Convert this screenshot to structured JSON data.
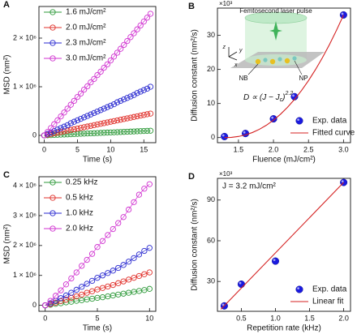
{
  "chart_data": [
    {
      "panel": "A",
      "type": "line",
      "xlabel": "Time (s)",
      "ylabel": "MSD (nm²)",
      "legend": "upper left",
      "x": [
        0,
        0.5,
        1,
        1.5,
        2,
        2.5,
        3,
        3.5,
        4,
        4.5,
        5,
        5.5,
        6,
        6.5,
        7,
        7.5,
        8,
        8.5,
        9,
        9.5,
        10,
        10.5,
        11,
        11.5,
        12,
        12.5,
        13,
        13.5,
        14,
        14.5,
        15,
        15.5,
        16
      ],
      "xlim": [
        -0.8,
        16.8
      ],
      "xticks": [
        0,
        5,
        10,
        15
      ],
      "ylim": [
        -150000,
        2650000
      ],
      "yticks": [
        0,
        {
          "value": 1000000,
          "label": "1 × 10⁶"
        },
        {
          "value": 2000000,
          "label": "2 × 10⁶"
        }
      ],
      "series": [
        {
          "name": "1.6 mJ/cm²",
          "color": "#2e9a3a",
          "style": "line-markers",
          "values": [
            0,
            3000,
            6000,
            9000,
            12000,
            15000,
            18000,
            21000,
            24000,
            27000,
            30000,
            33000,
            36000,
            39000,
            42000,
            45000,
            48000,
            51000,
            54000,
            57000,
            60000,
            63000,
            66000,
            69000,
            72000,
            75000,
            78000,
            81000,
            84000,
            87000,
            90000,
            93000,
            96000
          ]
        },
        {
          "name": "2.0 mJ/cm²",
          "color": "#e0302a",
          "style": "line-markers",
          "values": [
            0,
            14000,
            28000,
            42000,
            56000,
            70000,
            84000,
            98000,
            112000,
            126000,
            140000,
            154000,
            168000,
            182000,
            196000,
            210000,
            224000,
            238000,
            252000,
            266000,
            280000,
            294000,
            308000,
            322000,
            336000,
            350000,
            364000,
            378000,
            392000,
            406000,
            420000,
            434000,
            448000
          ]
        },
        {
          "name": "2.3 mJ/cm²",
          "color": "#2a2ad0",
          "style": "line-markers",
          "values": [
            0,
            30000,
            60000,
            90000,
            120000,
            150000,
            180000,
            210000,
            250000,
            280000,
            310000,
            340000,
            370000,
            400000,
            430000,
            460000,
            490000,
            520000,
            550000,
            580000,
            610000,
            640000,
            680000,
            710000,
            740000,
            770000,
            800000,
            830000,
            870000,
            900000,
            930000,
            960000,
            1000000
          ]
        },
        {
          "name": "3.0 mJ/cm²",
          "color": "#d030d0",
          "style": "line-markers",
          "values": [
            0,
            70000,
            150000,
            230000,
            310000,
            390000,
            470000,
            550000,
            630000,
            710000,
            790000,
            860000,
            940000,
            1010000,
            1090000,
            1160000,
            1240000,
            1310000,
            1390000,
            1460000,
            1540000,
            1620000,
            1700000,
            1780000,
            1860000,
            1940000,
            2020000,
            2100000,
            2180000,
            2260000,
            2340000,
            2420000,
            2500000
          ]
        }
      ]
    },
    {
      "panel": "B",
      "type": "scatter",
      "xlabel": "Fluence (mJ/cm²)",
      "ylabel": "Diffusion constant (nm²/s)",
      "legend": "lower right",
      "xlim": [
        1.2,
        3.1
      ],
      "xticks": [
        1.5,
        {
          "value": 2,
          "label": "2.0"
        },
        2.5,
        {
          "value": 3,
          "label": "3.0"
        }
      ],
      "ylim": [
        -1.5,
        38
      ],
      "yticks": [
        0,
        10,
        20,
        30
      ],
      "y_multiplier": "×10³",
      "inset": {
        "title": "Femtosecond laser pulse",
        "labels": [
          "NB",
          "NP"
        ],
        "axes": [
          "z",
          "y",
          "x"
        ]
      },
      "formula": [
        "D ∝ (J − J",
        "c",
        ")",
        "2.2"
      ],
      "series": [
        {
          "name": "Exp. data",
          "color": "#1a1ae0",
          "style": "markers",
          "x": [
            1.3,
            1.6,
            2.0,
            2.3,
            3.0
          ],
          "values": [
            0.3,
            1.2,
            5.5,
            12,
            36
          ]
        },
        {
          "name": "Fitted curve",
          "color": "#d42020",
          "style": "line",
          "x": [
            1.3,
            1.4,
            1.5,
            1.6,
            1.7,
            1.8,
            1.9,
            2.0,
            2.1,
            2.2,
            2.3,
            2.4,
            2.5,
            2.6,
            2.7,
            2.8,
            2.9,
            3.0
          ],
          "values": [
            0,
            0.07,
            0.32,
            0.79,
            1.49,
            2.44,
            3.64,
            5.11,
            6.85,
            8.88,
            11.2,
            13.81,
            16.72,
            19.95,
            23.48,
            27.33,
            31.5,
            35.95
          ]
        }
      ]
    },
    {
      "panel": "C",
      "type": "line",
      "xlabel": "Time (s)",
      "ylabel": "MSD (nm²)",
      "legend": "upper left",
      "x": [
        0,
        0.5,
        1,
        1.5,
        2,
        2.5,
        3,
        3.5,
        4,
        4.5,
        5,
        5.5,
        6,
        6.5,
        7,
        7.5,
        8,
        8.5,
        9,
        9.5,
        10
      ],
      "xlim": [
        -0.6,
        10.6
      ],
      "xticks": [
        0,
        5,
        10
      ],
      "ylim": [
        -200000,
        4300000
      ],
      "yticks": [
        0,
        {
          "value": 1000000,
          "label": "1 × 10⁶"
        },
        {
          "value": 2000000,
          "label": "2 × 10⁶"
        },
        {
          "value": 3000000,
          "label": "3 × 10⁶"
        },
        {
          "value": 4000000,
          "label": "4 × 10⁶"
        }
      ],
      "series": [
        {
          "name": "0.25 kHz",
          "color": "#2e9a3a",
          "style": "line-markers",
          "values": [
            0,
            20000,
            50000,
            70000,
            100000,
            120000,
            150000,
            170000,
            200000,
            220000,
            250000,
            270000,
            300000,
            330000,
            360000,
            390000,
            420000,
            450000,
            480000,
            510000,
            550000
          ]
        },
        {
          "name": "0.5 kHz",
          "color": "#e0302a",
          "style": "line-markers",
          "values": [
            0,
            40000,
            90000,
            140000,
            190000,
            250000,
            300000,
            360000,
            420000,
            470000,
            530000,
            580000,
            630000,
            680000,
            740000,
            800000,
            860000,
            920000,
            980000,
            1040000,
            1100000
          ]
        },
        {
          "name": "1.0 kHz",
          "color": "#2a2ad0",
          "style": "line-markers",
          "values": [
            0,
            70000,
            150000,
            240000,
            330000,
            420000,
            520000,
            620000,
            720000,
            820000,
            920000,
            1000000,
            1080000,
            1160000,
            1250000,
            1350000,
            1460000,
            1580000,
            1700000,
            1820000,
            1920000
          ]
        },
        {
          "name": "2.0 kHz",
          "color": "#d030d0",
          "style": "line-markers",
          "values": [
            0,
            150000,
            320000,
            500000,
            700000,
            900000,
            1100000,
            1320000,
            1520000,
            1720000,
            1950000,
            2150000,
            2350000,
            2550000,
            2750000,
            2950000,
            3200000,
            3450000,
            3700000,
            3900000,
            4050000
          ]
        }
      ]
    },
    {
      "panel": "D",
      "type": "scatter",
      "xlabel": "Repetition rate (kHz)",
      "ylabel": "Diffusion constant (nm²/s)",
      "legend": "lower right",
      "xlim": [
        0.15,
        2.1
      ],
      "xticks": [
        0.5,
        {
          "value": 1,
          "label": "1.0"
        },
        1.5,
        {
          "value": 2,
          "label": "2.0"
        }
      ],
      "ylim": [
        8,
        106
      ],
      "yticks": [
        30,
        60,
        90
      ],
      "y_multiplier": "×10³",
      "annotation": "J = 3.2 mJ/cm²",
      "series": [
        {
          "name": "Exp. data",
          "color": "#1a1ae0",
          "style": "markers",
          "x": [
            0.25,
            0.5,
            1.0,
            2.0
          ],
          "values": [
            12,
            28,
            45,
            103
          ]
        },
        {
          "name": "Linear fit",
          "color": "#d42020",
          "style": "line",
          "x": [
            0.2,
            2.0
          ],
          "values": [
            9.5,
            103
          ]
        }
      ]
    }
  ]
}
